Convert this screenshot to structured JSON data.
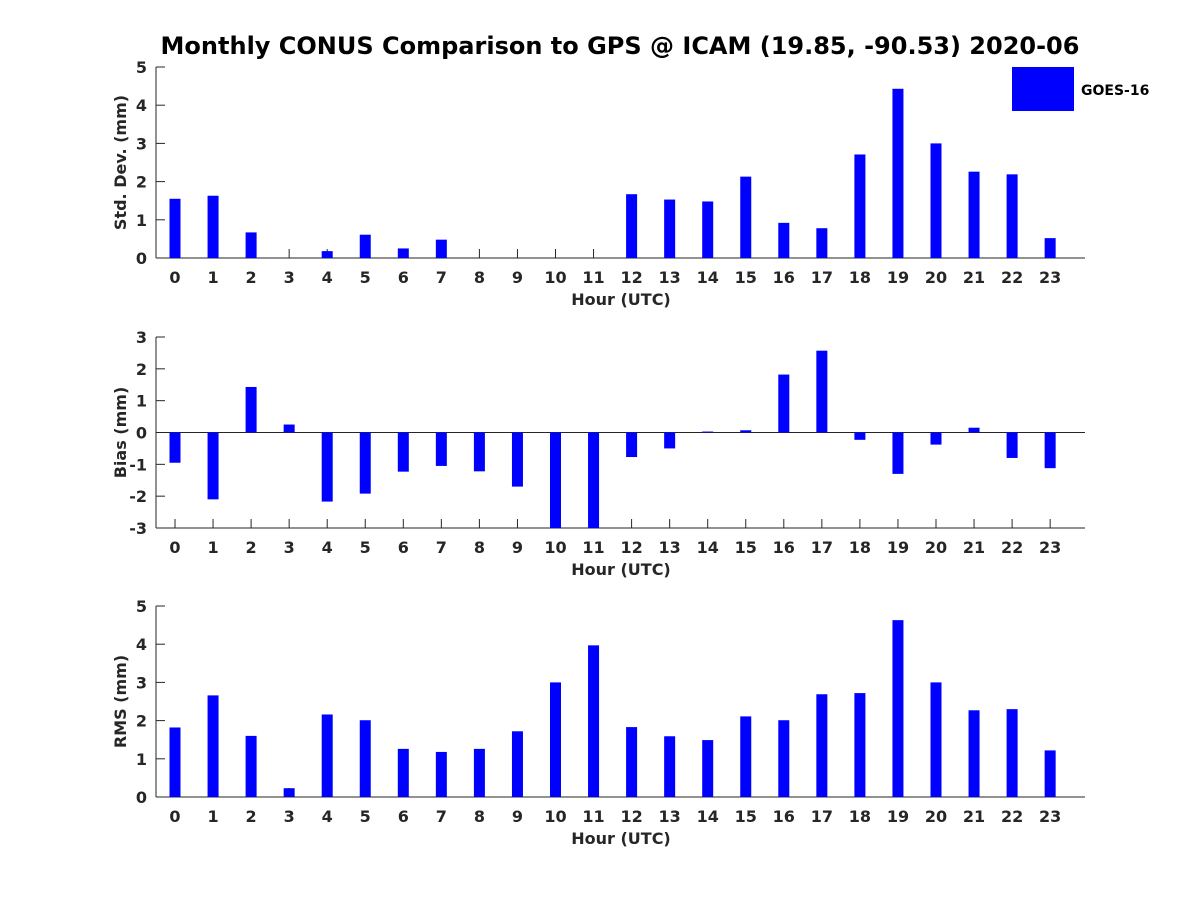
{
  "figure": {
    "title": "Monthly CONUS Comparison to GPS @ ICAM (19.85, -90.53) 2020-06",
    "legend": {
      "label": "GOES-16",
      "color": "#0000ff",
      "placement": "top-right"
    }
  },
  "chart_data": [
    {
      "type": "bar",
      "xlabel": "Hour (UTC)",
      "ylabel": "Std. Dev. (mm)",
      "categories": [
        "0",
        "1",
        "2",
        "3",
        "4",
        "5",
        "6",
        "7",
        "8",
        "9",
        "10",
        "11",
        "12",
        "13",
        "14",
        "15",
        "16",
        "17",
        "18",
        "19",
        "20",
        "21",
        "22",
        "23"
      ],
      "ylim": [
        0,
        5
      ],
      "yticks": [
        "0",
        "1",
        "2",
        "3",
        "4",
        "5"
      ],
      "series": [
        {
          "name": "GOES-16",
          "color": "#0000ff",
          "values": [
            1.55,
            1.63,
            0.67,
            0,
            0.18,
            0.61,
            0.25,
            0.48,
            0,
            0,
            0,
            0,
            1.67,
            1.53,
            1.48,
            2.13,
            0.92,
            0.78,
            2.71,
            4.43,
            3.0,
            2.26,
            2.19,
            0.52
          ]
        }
      ]
    },
    {
      "type": "bar",
      "xlabel": "Hour (UTC)",
      "ylabel": "Bias (mm)",
      "categories": [
        "0",
        "1",
        "2",
        "3",
        "4",
        "5",
        "6",
        "7",
        "8",
        "9",
        "10",
        "11",
        "12",
        "13",
        "14",
        "15",
        "16",
        "17",
        "18",
        "19",
        "20",
        "21",
        "22",
        "23"
      ],
      "ylim": [
        -3,
        3
      ],
      "yticks": [
        "-3",
        "-2",
        "-1",
        "0",
        "1",
        "2",
        "3"
      ],
      "series": [
        {
          "name": "GOES-16",
          "color": "#0000ff",
          "values": [
            -0.95,
            -2.1,
            1.43,
            0.25,
            -2.17,
            -1.92,
            -1.23,
            -1.05,
            -1.22,
            -1.7,
            -3.0,
            -3.0,
            -0.77,
            -0.5,
            0.03,
            0.07,
            1.82,
            2.57,
            -0.23,
            -1.3,
            -0.38,
            0.15,
            -0.8,
            -1.12
          ]
        }
      ]
    },
    {
      "type": "bar",
      "xlabel": "Hour (UTC)",
      "ylabel": "RMS (mm)",
      "categories": [
        "0",
        "1",
        "2",
        "3",
        "4",
        "5",
        "6",
        "7",
        "8",
        "9",
        "10",
        "11",
        "12",
        "13",
        "14",
        "15",
        "16",
        "17",
        "18",
        "19",
        "20",
        "21",
        "22",
        "23"
      ],
      "ylim": [
        0,
        5
      ],
      "yticks": [
        "0",
        "1",
        "2",
        "3",
        "4",
        "5"
      ],
      "series": [
        {
          "name": "GOES-16",
          "color": "#0000ff",
          "values": [
            1.82,
            2.66,
            1.6,
            0.23,
            2.16,
            2.01,
            1.26,
            1.18,
            1.26,
            1.72,
            3.0,
            3.97,
            1.83,
            1.59,
            1.49,
            2.11,
            2.01,
            2.69,
            2.72,
            4.63,
            3.0,
            2.27,
            2.3,
            1.22
          ]
        }
      ]
    }
  ]
}
